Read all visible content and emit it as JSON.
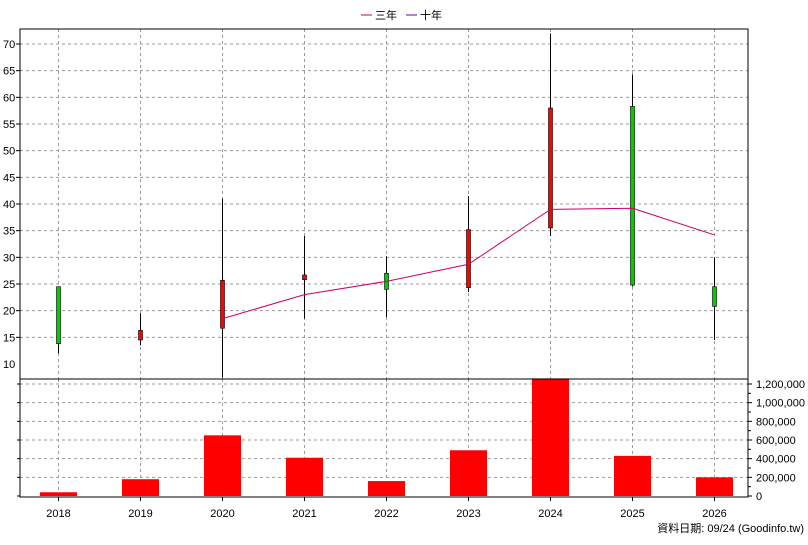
{
  "legend": [
    {
      "label": "三年",
      "color": "#cc0066"
    },
    {
      "label": "十年",
      "color": "#6600aa"
    }
  ],
  "source_note": "資料日期: 09/24  (Goodinfo.tw)",
  "chart_data": [
    {
      "type": "candlestick",
      "title": "",
      "categories": [
        "2018",
        "2019",
        "2020",
        "2021",
        "2022",
        "2023",
        "2024",
        "2025",
        "2026"
      ],
      "ylim": [
        10,
        70
      ],
      "yticks": [
        10,
        15,
        20,
        25,
        30,
        35,
        40,
        45,
        50,
        55,
        60,
        65,
        70
      ],
      "grid": true,
      "candles": [
        {
          "x": "2018",
          "open": 24.5,
          "close": 13.8,
          "high": 24.5,
          "low": 12.0
        },
        {
          "x": "2019",
          "open": 14.5,
          "close": 16.3,
          "high": 19.5,
          "low": 13.5
        },
        {
          "x": "2020",
          "open": 16.7,
          "close": 25.7,
          "high": 41.0,
          "low": 7.5
        },
        {
          "x": "2021",
          "open": 25.8,
          "close": 26.7,
          "high": 34.0,
          "low": 18.5
        },
        {
          "x": "2022",
          "open": 27.0,
          "close": 24.0,
          "high": 30.2,
          "low": 18.8
        },
        {
          "x": "2023",
          "open": 24.3,
          "close": 35.2,
          "high": 41.5,
          "low": 23.5
        },
        {
          "x": "2024",
          "open": 35.5,
          "close": 58.0,
          "high": 72.0,
          "low": 34.0
        },
        {
          "x": "2025",
          "open": 58.3,
          "close": 24.8,
          "high": 64.3,
          "low": 24.5
        },
        {
          "x": "2026",
          "open": 24.5,
          "close": 20.8,
          "high": 30.0,
          "low": 14.5
        }
      ],
      "candle_colors": {
        "up": "#ff0000",
        "down": "#00cc00",
        "outline": "#000000"
      },
      "series": [
        {
          "name": "三年",
          "color": "#cc0066",
          "points": [
            {
              "x": "2020",
              "y": 18.5
            },
            {
              "x": "2021",
              "y": 23.0
            },
            {
              "x": "2022",
              "y": 25.5
            },
            {
              "x": "2023",
              "y": 28.7
            },
            {
              "x": "2024",
              "y": 39.0
            },
            {
              "x": "2025",
              "y": 39.2
            },
            {
              "x": "2026",
              "y": 34.2
            }
          ]
        }
      ]
    },
    {
      "type": "bar",
      "categories": [
        "2018",
        "2019",
        "2020",
        "2021",
        "2022",
        "2023",
        "2024",
        "2025",
        "2026"
      ],
      "values": [
        40000,
        180000,
        650000,
        410000,
        160000,
        490000,
        1260000,
        430000,
        200000
      ],
      "color": "#ff0000",
      "ylim": [
        0,
        1200000
      ],
      "yticks": [
        0,
        200000,
        400000,
        600000,
        800000,
        1000000,
        1200000
      ],
      "ytick_labels": [
        "0",
        "200,000",
        "400,000",
        "600,000",
        "800,000",
        "1,000,000",
        "1,200,000"
      ],
      "grid": true,
      "y_axis_side": "right"
    }
  ]
}
